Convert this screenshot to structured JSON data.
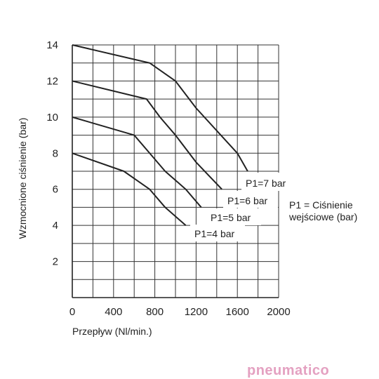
{
  "chart_data": {
    "type": "line",
    "xlabel": "Przepływ (Nl/min.)",
    "ylabel": "Wzmocnione ciśnienie (bar)",
    "xlim": [
      0,
      2000
    ],
    "ylim": [
      0,
      14
    ],
    "xticks": [
      0,
      400,
      800,
      1200,
      1600,
      2000
    ],
    "yticks": [
      2,
      4,
      6,
      8,
      10,
      12,
      14
    ],
    "x_minor_step": 200,
    "y_minor_step": 1,
    "grid": true,
    "line_color": "#222222",
    "series": [
      {
        "name": "P1=7 bar",
        "x": [
          0,
          750,
          1000,
          1200,
          1600,
          1700
        ],
        "y": [
          14,
          13,
          12,
          10.5,
          8,
          7
        ]
      },
      {
        "name": "P1=6 bar",
        "x": [
          0,
          720,
          850,
          1000,
          1200,
          1450
        ],
        "y": [
          12,
          11,
          10,
          9,
          7.5,
          6
        ]
      },
      {
        "name": "P1=5 bar",
        "x": [
          0,
          600,
          750,
          900,
          1100,
          1250
        ],
        "y": [
          10,
          9,
          8,
          7,
          6,
          5
        ]
      },
      {
        "name": "P1=4 bar",
        "x": [
          0,
          500,
          750,
          900,
          1100
        ],
        "y": [
          8,
          7,
          6,
          5,
          4
        ]
      }
    ],
    "annotation": {
      "line1": "P1 = Ciśnienie",
      "line2": "wejściowe (bar)"
    }
  },
  "brand": {
    "text": "pneumatico",
    "color": "#e4a1c1"
  }
}
